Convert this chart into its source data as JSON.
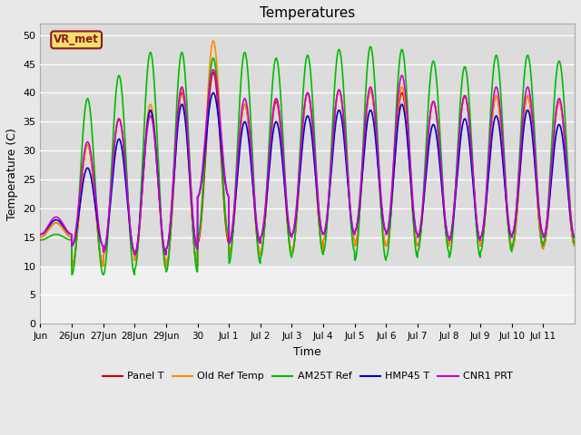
{
  "title": "Temperatures",
  "xlabel": "Time",
  "ylabel": "Temperature (C)",
  "ylim": [
    0,
    52
  ],
  "yticks": [
    0,
    5,
    10,
    15,
    20,
    25,
    30,
    35,
    40,
    45,
    50
  ],
  "fig_bg": "#e8e8e8",
  "plot_bg_upper": "#dcdcdc",
  "plot_bg_lower": "#f0f0f0",
  "grid_color": "#c8c8c8",
  "annotation_text": "VR_met",
  "annotation_bg": "#f5e06e",
  "annotation_border": "#8b1a1a",
  "series": {
    "Panel T": {
      "color": "#cc0000",
      "lw": 1.2
    },
    "Old Ref Temp": {
      "color": "#ff8c00",
      "lw": 1.2
    },
    "AM25T Ref": {
      "color": "#00bb00",
      "lw": 1.2
    },
    "HMP45 T": {
      "color": "#0000cc",
      "lw": 1.2
    },
    "CNR1 PRT": {
      "color": "#cc00cc",
      "lw": 1.2
    }
  },
  "num_days": 17,
  "samples_per_day": 288,
  "daily_cycles": {
    "Panel T": {
      "min_vals": [
        15.0,
        10.0,
        12.0,
        11.0,
        10.0,
        14.0,
        12.0,
        12.5,
        12.5,
        14.5,
        13.5,
        13.5,
        13.5,
        14.0,
        13.5,
        13.0,
        13.5
      ],
      "max_vals": [
        17.5,
        31.0,
        35.5,
        37.0,
        40.0,
        43.5,
        38.0,
        38.5,
        40.0,
        40.5,
        40.5,
        40.0,
        38.5,
        39.5,
        39.5,
        39.5,
        38.5
      ]
    },
    "Old Ref Temp": {
      "min_vals": [
        15.0,
        10.0,
        12.0,
        11.0,
        10.0,
        14.5,
        12.0,
        12.5,
        12.5,
        14.5,
        13.5,
        13.5,
        13.5,
        14.0,
        13.5,
        13.0,
        13.5
      ],
      "max_vals": [
        17.5,
        31.0,
        35.5,
        38.0,
        40.5,
        49.0,
        38.0,
        39.0,
        40.0,
        40.5,
        40.5,
        41.0,
        38.5,
        39.5,
        39.5,
        39.5,
        38.5
      ]
    },
    "AM25T Ref": {
      "min_vals": [
        14.5,
        8.5,
        8.5,
        9.5,
        9.0,
        15.0,
        10.5,
        11.5,
        12.0,
        12.5,
        11.0,
        11.5,
        12.5,
        11.5,
        12.5,
        13.5,
        14.0
      ],
      "max_vals": [
        15.5,
        39.0,
        43.0,
        47.0,
        47.0,
        46.0,
        47.0,
        46.0,
        46.5,
        47.5,
        48.0,
        47.5,
        45.5,
        44.5,
        46.5,
        46.5,
        45.5
      ]
    },
    "HMP45 T": {
      "min_vals": [
        15.5,
        13.5,
        12.5,
        12.0,
        13.0,
        22.0,
        14.0,
        15.0,
        15.5,
        15.5,
        16.0,
        15.5,
        15.0,
        14.5,
        15.0,
        15.5,
        15.0
      ],
      "max_vals": [
        18.0,
        27.0,
        32.0,
        37.0,
        38.0,
        40.0,
        35.0,
        35.0,
        36.0,
        37.0,
        37.0,
        38.0,
        34.5,
        35.5,
        36.0,
        37.0,
        34.5
      ]
    },
    "CNR1 PRT": {
      "min_vals": [
        15.5,
        13.5,
        12.5,
        12.0,
        13.0,
        22.0,
        14.0,
        15.0,
        15.5,
        15.5,
        16.0,
        15.5,
        15.0,
        14.5,
        15.0,
        15.5,
        15.0
      ],
      "max_vals": [
        18.5,
        31.5,
        35.5,
        36.0,
        41.0,
        44.0,
        39.0,
        39.0,
        40.0,
        40.5,
        41.0,
        43.0,
        38.5,
        39.5,
        41.0,
        41.0,
        39.0
      ]
    }
  },
  "tick_positions": [
    0,
    1,
    2,
    3,
    4,
    5,
    6,
    7,
    8,
    9,
    10,
    11,
    12,
    13,
    14,
    15,
    16
  ],
  "tick_labels": [
    "Jun",
    "26Jun",
    "27Jun",
    "28Jun",
    "29Jun",
    "30",
    "Jul 1",
    "Jul 2",
    "Jul 3",
    "Jul 4",
    "Jul 5",
    "Jul 6",
    "Jul 7",
    "Jul 8",
    "Jul 9",
    "Jul 10",
    "Jul 11"
  ]
}
